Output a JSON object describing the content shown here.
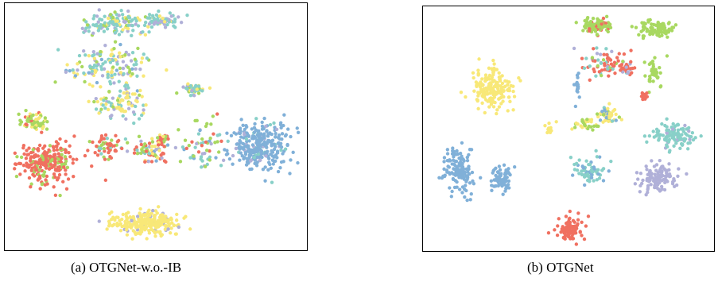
{
  "chart_data": [
    {
      "type": "scatter",
      "title": "(a) OTGNet-w.o.-IB",
      "xlabel": "",
      "ylabel": "",
      "grid": false,
      "legend": "none",
      "xlim": [
        0,
        100
      ],
      "ylim": [
        0,
        100
      ],
      "palette": [
        "#f07060",
        "#a8d860",
        "#80b0d8",
        "#f8e878",
        "#b0b0d8",
        "#88d0c8"
      ],
      "clusters": [
        {
          "x": 37,
          "y": 92,
          "sx": 10,
          "sy": 4,
          "n": 130,
          "mix": [
            0,
            1,
            0,
            2,
            2,
            4
          ]
        },
        {
          "x": 52,
          "y": 93,
          "sx": 6,
          "sy": 2,
          "n": 60,
          "mix": [
            0,
            0,
            0,
            1,
            2,
            4
          ]
        },
        {
          "x": 35,
          "y": 74,
          "sx": 12,
          "sy": 7,
          "n": 150,
          "mix": [
            0,
            1,
            1,
            3,
            2,
            3
          ]
        },
        {
          "x": 39,
          "y": 60,
          "sx": 8,
          "sy": 5,
          "n": 90,
          "mix": [
            0,
            1,
            0,
            4,
            1,
            2
          ]
        },
        {
          "x": 62,
          "y": 65,
          "sx": 3,
          "sy": 2,
          "n": 45,
          "mix": [
            0,
            1,
            0,
            3,
            1,
            4
          ]
        },
        {
          "x": 10,
          "y": 52,
          "sx": 4,
          "sy": 3,
          "n": 60,
          "mix": [
            1,
            4,
            0,
            1,
            0,
            0
          ]
        },
        {
          "x": 14,
          "y": 35,
          "sx": 7,
          "sy": 7,
          "n": 240,
          "mix": [
            6,
            2,
            0,
            0,
            0,
            0
          ]
        },
        {
          "x": 33,
          "y": 42,
          "sx": 4,
          "sy": 5,
          "n": 60,
          "mix": [
            3,
            2,
            0,
            0,
            0,
            1
          ]
        },
        {
          "x": 48,
          "y": 40,
          "sx": 6,
          "sy": 4,
          "n": 70,
          "mix": [
            2,
            2,
            1,
            1,
            1,
            1
          ]
        },
        {
          "x": 52,
          "y": 45,
          "sx": 2,
          "sy": 2,
          "n": 30,
          "mix": [
            3,
            1,
            0,
            1,
            0,
            0
          ]
        },
        {
          "x": 66,
          "y": 42,
          "sx": 5,
          "sy": 8,
          "n": 60,
          "mix": [
            1,
            2,
            1,
            0,
            1,
            2
          ]
        },
        {
          "x": 84,
          "y": 42,
          "sx": 8,
          "sy": 8,
          "n": 300,
          "mix": [
            0,
            0,
            10,
            0,
            1,
            1
          ]
        },
        {
          "x": 47,
          "y": 11,
          "sx": 9,
          "sy": 4,
          "n": 260,
          "mix": [
            0,
            0,
            0,
            9,
            1,
            0
          ]
        }
      ]
    },
    {
      "type": "scatter",
      "title": "(b) OTGNet",
      "xlabel": "",
      "ylabel": "",
      "grid": false,
      "legend": "none",
      "xlim": [
        0,
        100
      ],
      "ylim": [
        0,
        100
      ],
      "palette": [
        "#f07060",
        "#a8d860",
        "#80b0d8",
        "#f8e878",
        "#b0b0d8",
        "#88d0c8"
      ],
      "clusters": [
        {
          "x": 24,
          "y": 66,
          "sx": 6,
          "sy": 7,
          "n": 170,
          "mix": [
            0,
            0,
            0,
            1,
            0,
            0
          ]
        },
        {
          "x": 12,
          "y": 33,
          "sx": 4,
          "sy": 8,
          "n": 140,
          "mix": [
            0,
            0,
            1,
            0,
            0,
            0
          ]
        },
        {
          "x": 27,
          "y": 30,
          "sx": 3,
          "sy": 5,
          "n": 70,
          "mix": [
            0,
            0,
            1,
            0,
            0,
            0
          ]
        },
        {
          "x": 60,
          "y": 92,
          "sx": 4,
          "sy": 3,
          "n": 110,
          "mix": [
            1,
            5,
            0,
            0,
            0,
            0
          ]
        },
        {
          "x": 80,
          "y": 91,
          "sx": 5,
          "sy": 3,
          "n": 100,
          "mix": [
            0,
            1,
            0,
            0,
            0,
            0
          ]
        },
        {
          "x": 62,
          "y": 76,
          "sx": 6,
          "sy": 5,
          "n": 70,
          "mix": [
            2,
            1,
            0,
            0,
            1,
            1
          ]
        },
        {
          "x": 70,
          "y": 75,
          "sx": 2,
          "sy": 2,
          "n": 30,
          "mix": [
            3,
            0,
            0,
            0,
            1,
            0
          ]
        },
        {
          "x": 79,
          "y": 73,
          "sx": 2,
          "sy": 5,
          "n": 40,
          "mix": [
            0,
            1,
            0,
            0,
            0,
            0
          ]
        },
        {
          "x": 76,
          "y": 63,
          "sx": 1,
          "sy": 2,
          "n": 15,
          "mix": [
            1,
            0,
            0,
            0,
            0,
            0
          ]
        },
        {
          "x": 64,
          "y": 55,
          "sx": 3,
          "sy": 3,
          "n": 50,
          "mix": [
            0,
            1,
            1,
            2,
            0,
            1
          ]
        },
        {
          "x": 56,
          "y": 52,
          "sx": 4,
          "sy": 2,
          "n": 30,
          "mix": [
            0,
            1,
            0,
            1,
            0,
            0
          ]
        },
        {
          "x": 43,
          "y": 50,
          "sx": 2,
          "sy": 2,
          "n": 12,
          "mix": [
            0,
            0,
            0,
            1,
            0,
            0
          ]
        },
        {
          "x": 53,
          "y": 67,
          "sx": 1,
          "sy": 4,
          "n": 15,
          "mix": [
            0,
            0,
            1,
            0,
            0,
            0
          ]
        },
        {
          "x": 86,
          "y": 47,
          "sx": 7,
          "sy": 4,
          "n": 110,
          "mix": [
            0,
            0,
            0,
            0,
            1,
            6
          ]
        },
        {
          "x": 57,
          "y": 33,
          "sx": 5,
          "sy": 4,
          "n": 70,
          "mix": [
            0,
            0,
            1,
            0,
            0,
            2
          ]
        },
        {
          "x": 80,
          "y": 30,
          "sx": 6,
          "sy": 5,
          "n": 110,
          "mix": [
            0,
            0,
            0,
            0,
            1,
            0
          ]
        },
        {
          "x": 51,
          "y": 9,
          "sx": 4,
          "sy": 4,
          "n": 85,
          "mix": [
            1,
            0,
            0,
            0,
            0,
            0
          ]
        }
      ]
    }
  ]
}
